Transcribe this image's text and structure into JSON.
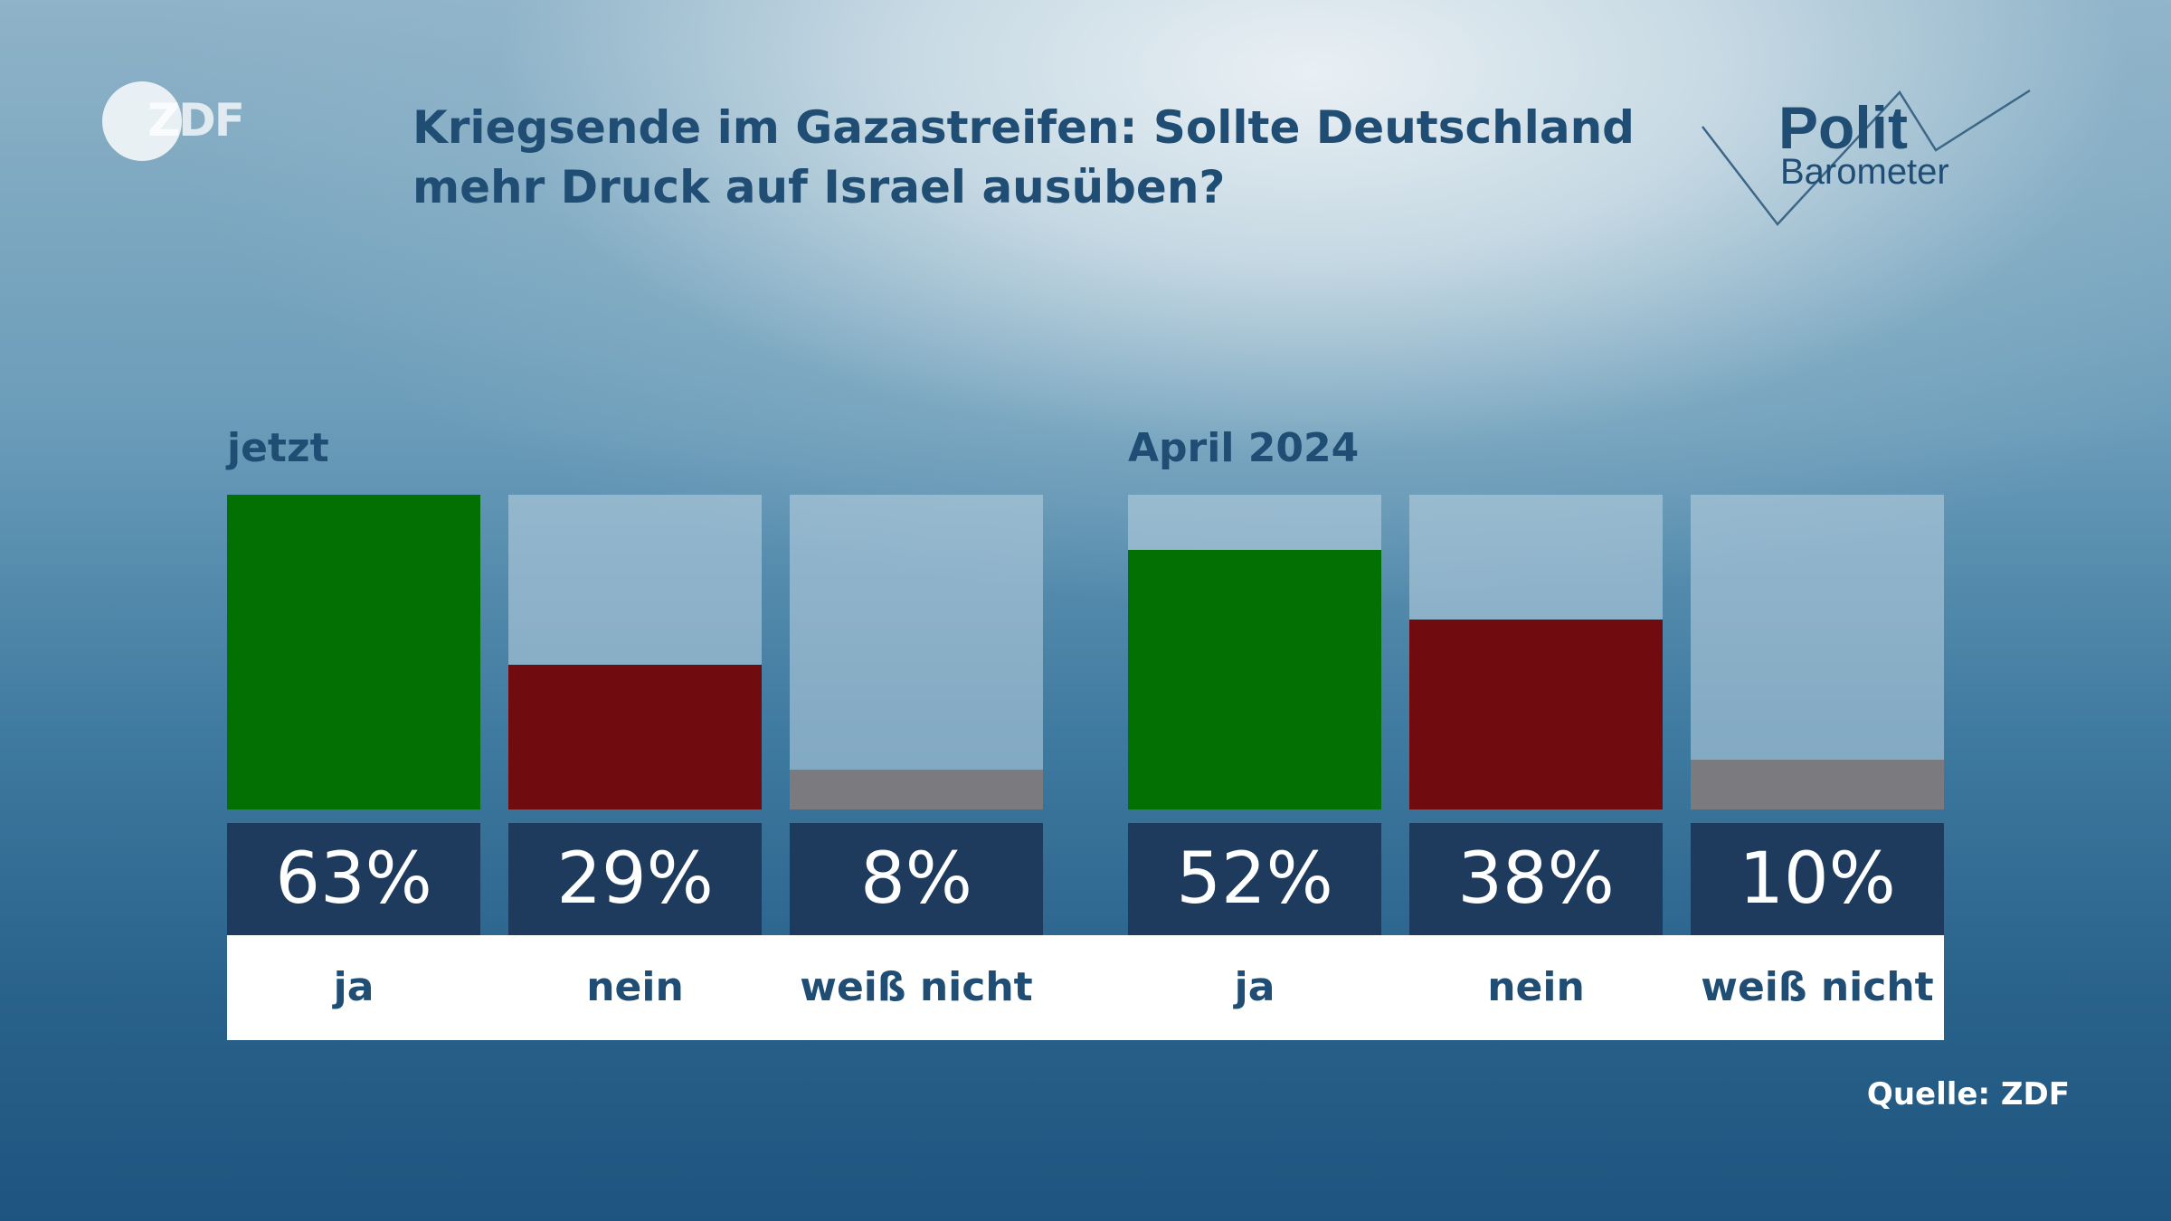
{
  "logo": {
    "text": "ZDF"
  },
  "title": "Kriegsende im Gazastreifen: Sollte Deutschland mehr Druck auf Israel ausüben?",
  "brand": {
    "line1": "Polit",
    "line2": "Barometer"
  },
  "source": "Quelle: ZDF",
  "colors": {
    "ja": "#037003",
    "nein": "#700c0f",
    "weiss_nicht": "#7b7b7f",
    "value_box": "#1e3b5e",
    "text": "#1f4d73"
  },
  "chart_data": [
    {
      "type": "bar",
      "group_label": "jetzt",
      "categories": [
        "ja",
        "nein",
        "weiß nicht"
      ],
      "values": [
        63,
        29,
        8
      ],
      "value_labels": [
        "63%",
        "29%",
        "8%"
      ],
      "unit": "%"
    },
    {
      "type": "bar",
      "group_label": "April 2024",
      "categories": [
        "ja",
        "nein",
        "weiß nicht"
      ],
      "values": [
        52,
        38,
        10
      ],
      "value_labels": [
        "52%",
        "38%",
        "10%"
      ],
      "unit": "%"
    }
  ]
}
